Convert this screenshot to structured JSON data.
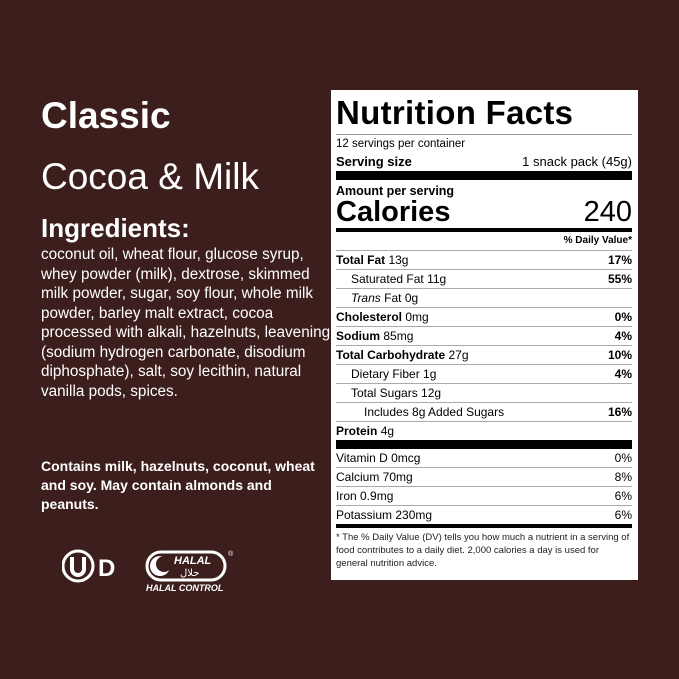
{
  "left": {
    "title": "Classic",
    "subtitle": "Cocoa & Milk",
    "ingredients_heading": "Ingredients:",
    "ingredients": "coconut oil, wheat flour, glucose syrup, whey powder (milk), dextrose, skimmed milk powder, sugar, soy flour, whole milk powder, barley malt extract, cocoa processed with alkali, hazelnuts, leavening (sodium hydrogen carbonate, disodium diphosphate), salt, soy lecithin, natural vanilla pods, spices.",
    "allergens": "Contains milk, hazelnuts, coconut, wheat and soy. May contain almonds and peanuts.",
    "logos": {
      "kosher": "OU D",
      "halal": "HALAL حلال HALAL CONTROL"
    }
  },
  "label": {
    "title": "Nutrition Facts",
    "servings": "12 servings per container",
    "serving_size_label": "Serving size",
    "serving_size_value": "1 snack pack (45g)",
    "amount_per_serving": "Amount per serving",
    "calories_label": "Calories",
    "calories_value": "240",
    "dv_header": "% Daily Value*",
    "nutrients": [
      {
        "name": "Total Fat",
        "amount": "13g",
        "dv": "17%"
      },
      {
        "name": "Saturated Fat",
        "amount": "11g",
        "dv": "55%"
      },
      {
        "name": "Trans",
        "name2": "Fat 0g"
      },
      {
        "name": "Cholesterol",
        "amount": "0mg",
        "dv": "0%"
      },
      {
        "name": "Sodium",
        "amount": "85mg",
        "dv": "4%"
      },
      {
        "name": "Total Carbohydrate",
        "amount": "27g",
        "dv": "10%"
      },
      {
        "name": "Dietary Fiber 1g",
        "dv": "4%"
      },
      {
        "name": "Total Sugars 12g"
      },
      {
        "name": "Includes 8g Added Sugars",
        "dv": "16%"
      },
      {
        "name": "Protein",
        "amount": "4g"
      }
    ],
    "vitamins": [
      {
        "name": "Vitamin D 0mcg",
        "dv": "0%"
      },
      {
        "name": "Calcium 70mg",
        "dv": "8%"
      },
      {
        "name": "Iron 0.9mg",
        "dv": "6%"
      },
      {
        "name": "Potassium 230mg",
        "dv": "6%"
      }
    ],
    "footnote": "* The % Daily Value (DV) tells you how much a nutrient in a serving of food contributes to a daily diet. 2,000 calories a day is used for general nutrition advice."
  }
}
